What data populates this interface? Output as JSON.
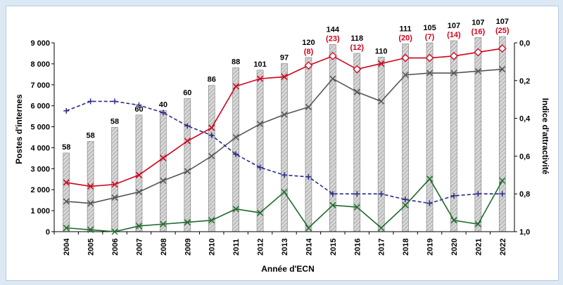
{
  "chart_data": {
    "type": "bar",
    "categories": [
      "2004",
      "2005",
      "2006",
      "2007",
      "2008",
      "2009",
      "2010",
      "2011",
      "2012",
      "2013",
      "2014",
      "2015",
      "2016",
      "2017",
      "2018",
      "2019",
      "2020",
      "2021",
      "2022"
    ],
    "bar_values": [
      3750,
      4300,
      4970,
      5560,
      5770,
      6340,
      6970,
      7810,
      7700,
      8010,
      8300,
      8920,
      8500,
      8320,
      8950,
      9000,
      9100,
      9250,
      9300
    ],
    "bar_labels": [
      "58",
      "58",
      "58",
      "60",
      "40",
      "60",
      "86",
      "88",
      "101",
      "97",
      "120",
      "144",
      "118",
      "110",
      "111",
      "105",
      "107",
      "107",
      "107"
    ],
    "bar_sublabels": [
      "",
      "",
      "",
      "",
      "",
      "",
      "",
      "",
      "",
      "",
      "(8)",
      "(23)",
      "(12)",
      "",
      "(20)",
      "(7)",
      "(14)",
      "(16)",
      "(25)"
    ],
    "left_axis": {
      "title": "Postes d'internes",
      "ylim": [
        0,
        9000
      ],
      "ticks": [
        "0",
        "1 000",
        "2 000",
        "3 000",
        "4 000",
        "5 000",
        "6 000",
        "7 000",
        "8 000",
        "9 000"
      ]
    },
    "right_axis": {
      "title": "Indice d'attractivité",
      "ylim": [
        0.0,
        1.0
      ],
      "inverted": true,
      "ticks": [
        "0,0",
        "0,2",
        "0,4",
        "0,6",
        "0,8",
        "1,0"
      ]
    },
    "xlabel": "Année d'ECN",
    "series": [
      {
        "color": "#d0021b",
        "axis": "right",
        "values": [
          0.74,
          0.76,
          0.75,
          0.7,
          0.61,
          0.52,
          0.45,
          0.23,
          0.19,
          0.18,
          0.12,
          0.07,
          0.14,
          0.11,
          0.08,
          0.08,
          0.07,
          0.05,
          0.03
        ]
      },
      {
        "color": "#555555",
        "axis": "right",
        "values": [
          0.84,
          0.85,
          0.82,
          0.79,
          0.73,
          0.68,
          0.6,
          0.5,
          0.43,
          0.38,
          0.34,
          0.19,
          0.26,
          0.31,
          0.17,
          0.16,
          0.16,
          0.15,
          0.14
        ]
      },
      {
        "color": "#2a2a8c",
        "axis": "right",
        "dashed": true,
        "values": [
          0.36,
          0.31,
          0.31,
          0.33,
          0.37,
          0.44,
          0.49,
          0.59,
          0.66,
          0.7,
          0.71,
          0.8,
          0.8,
          0.8,
          0.83,
          0.85,
          0.81,
          0.8,
          0.8
        ]
      },
      {
        "color": "#1f6b2c",
        "axis": "right",
        "values": [
          0.98,
          0.99,
          1.0,
          0.97,
          0.96,
          0.95,
          0.94,
          0.88,
          0.9,
          0.79,
          0.98,
          0.86,
          0.87,
          0.98,
          0.86,
          0.72,
          0.94,
          0.96,
          0.73
        ]
      }
    ],
    "colors": {
      "background": "#dce9f5",
      "bar_fill": "#cfcfcf",
      "bar_hatch": "#8a8a8a",
      "label_red": "#d0021b"
    }
  }
}
